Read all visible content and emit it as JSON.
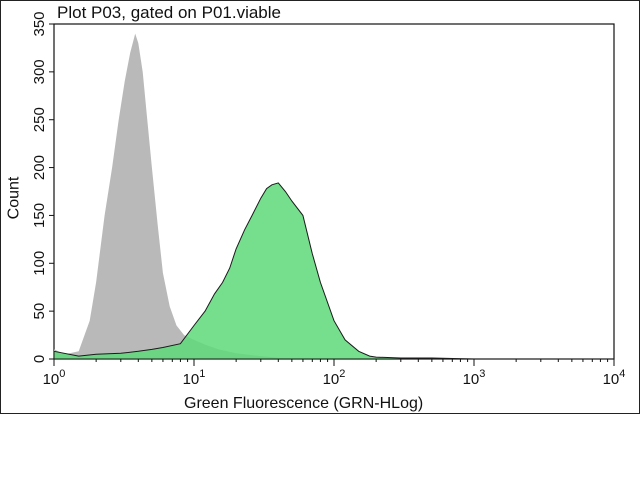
{
  "chart_data": {
    "type": "area",
    "title": "Plot P03, gated on P01.viable",
    "xlabel": "Green Fluorescence (GRN-HLog)",
    "ylabel": "Count",
    "x_scale": "log",
    "xlim": [
      1,
      10000
    ],
    "ylim": [
      0,
      350
    ],
    "yticks": [
      "0",
      "50",
      "100",
      "150",
      "200",
      "250",
      "300",
      "350"
    ],
    "xticks": [
      {
        "base": "10",
        "exp": "0"
      },
      {
        "base": "10",
        "exp": "1"
      },
      {
        "base": "10",
        "exp": "2"
      },
      {
        "base": "10",
        "exp": "3"
      },
      {
        "base": "10",
        "exp": "4"
      }
    ],
    "grid": false,
    "legend": "none",
    "series": [
      {
        "role": "control",
        "color": "#b9b9b9",
        "x": [
          1.0,
          1.2,
          1.5,
          1.8,
          2.0,
          2.3,
          2.6,
          2.9,
          3.2,
          3.5,
          3.8,
          4.0,
          4.3,
          4.6,
          5.0,
          5.5,
          6.0,
          6.7,
          7.5,
          8.5,
          10,
          12,
          15,
          20,
          30,
          50
        ],
        "y": [
          10,
          5,
          8,
          40,
          80,
          150,
          200,
          250,
          290,
          320,
          340,
          330,
          300,
          255,
          200,
          140,
          90,
          55,
          35,
          25,
          20,
          15,
          10,
          6,
          3,
          0
        ]
      },
      {
        "role": "stained",
        "color": "#5ed97a",
        "x": [
          1.0,
          1.5,
          2.0,
          3.0,
          4.0,
          5.0,
          6.0,
          8.0,
          10,
          12,
          14,
          16,
          18,
          20,
          23,
          26,
          30,
          33,
          36,
          40,
          45,
          50,
          60,
          70,
          80,
          100,
          120,
          150,
          180,
          200,
          300,
          500,
          1000,
          10000
        ],
        "y": [
          8,
          3,
          5,
          6,
          8,
          10,
          12,
          16,
          35,
          50,
          68,
          80,
          95,
          115,
          135,
          150,
          168,
          178,
          182,
          184,
          175,
          165,
          150,
          110,
          80,
          40,
          20,
          8,
          3,
          2,
          1,
          1,
          0,
          0
        ]
      }
    ]
  }
}
